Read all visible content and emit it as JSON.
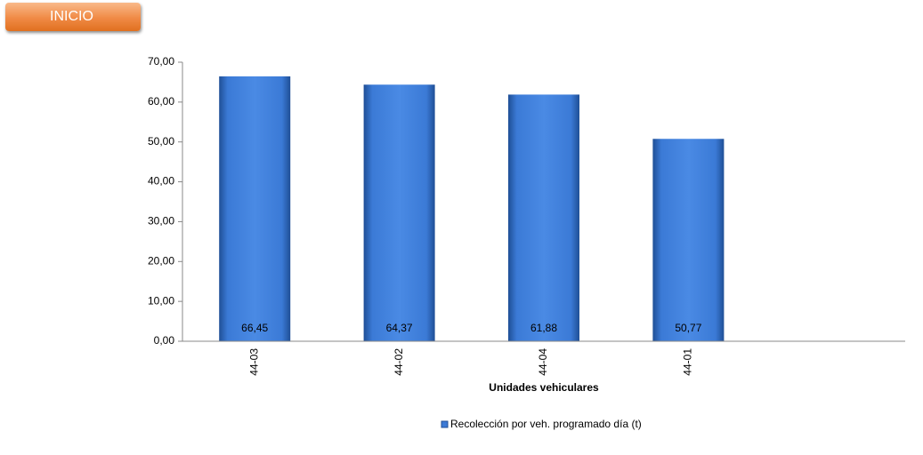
{
  "nav": {
    "button": "INICIO"
  },
  "chart_data": {
    "type": "bar",
    "categories": [
      "44-03",
      "44-02",
      "44-04",
      "44-01",
      null
    ],
    "series": [
      {
        "name": "Recolección por veh. programado día (t)",
        "color": "#3b7ad6",
        "values": [
          66.45,
          64.37,
          61.88,
          50.77,
          null
        ],
        "value_labels": [
          "66,45",
          "64,37",
          "61,88",
          "50,77",
          null
        ]
      }
    ],
    "x_label": "Unidades vehiculares",
    "ylim": [
      0,
      70
    ],
    "yticks": [
      {
        "value": 0,
        "label": "0,00"
      },
      {
        "value": 10,
        "label": "10,00"
      },
      {
        "value": 20,
        "label": "20,00"
      },
      {
        "value": 30,
        "label": "30,00"
      },
      {
        "value": 40,
        "label": "40,00"
      },
      {
        "value": 50,
        "label": "50,00"
      },
      {
        "value": 60,
        "label": "60,00"
      },
      {
        "value": 70,
        "label": "70,00"
      }
    ],
    "grid": false,
    "legend": "bottom"
  }
}
